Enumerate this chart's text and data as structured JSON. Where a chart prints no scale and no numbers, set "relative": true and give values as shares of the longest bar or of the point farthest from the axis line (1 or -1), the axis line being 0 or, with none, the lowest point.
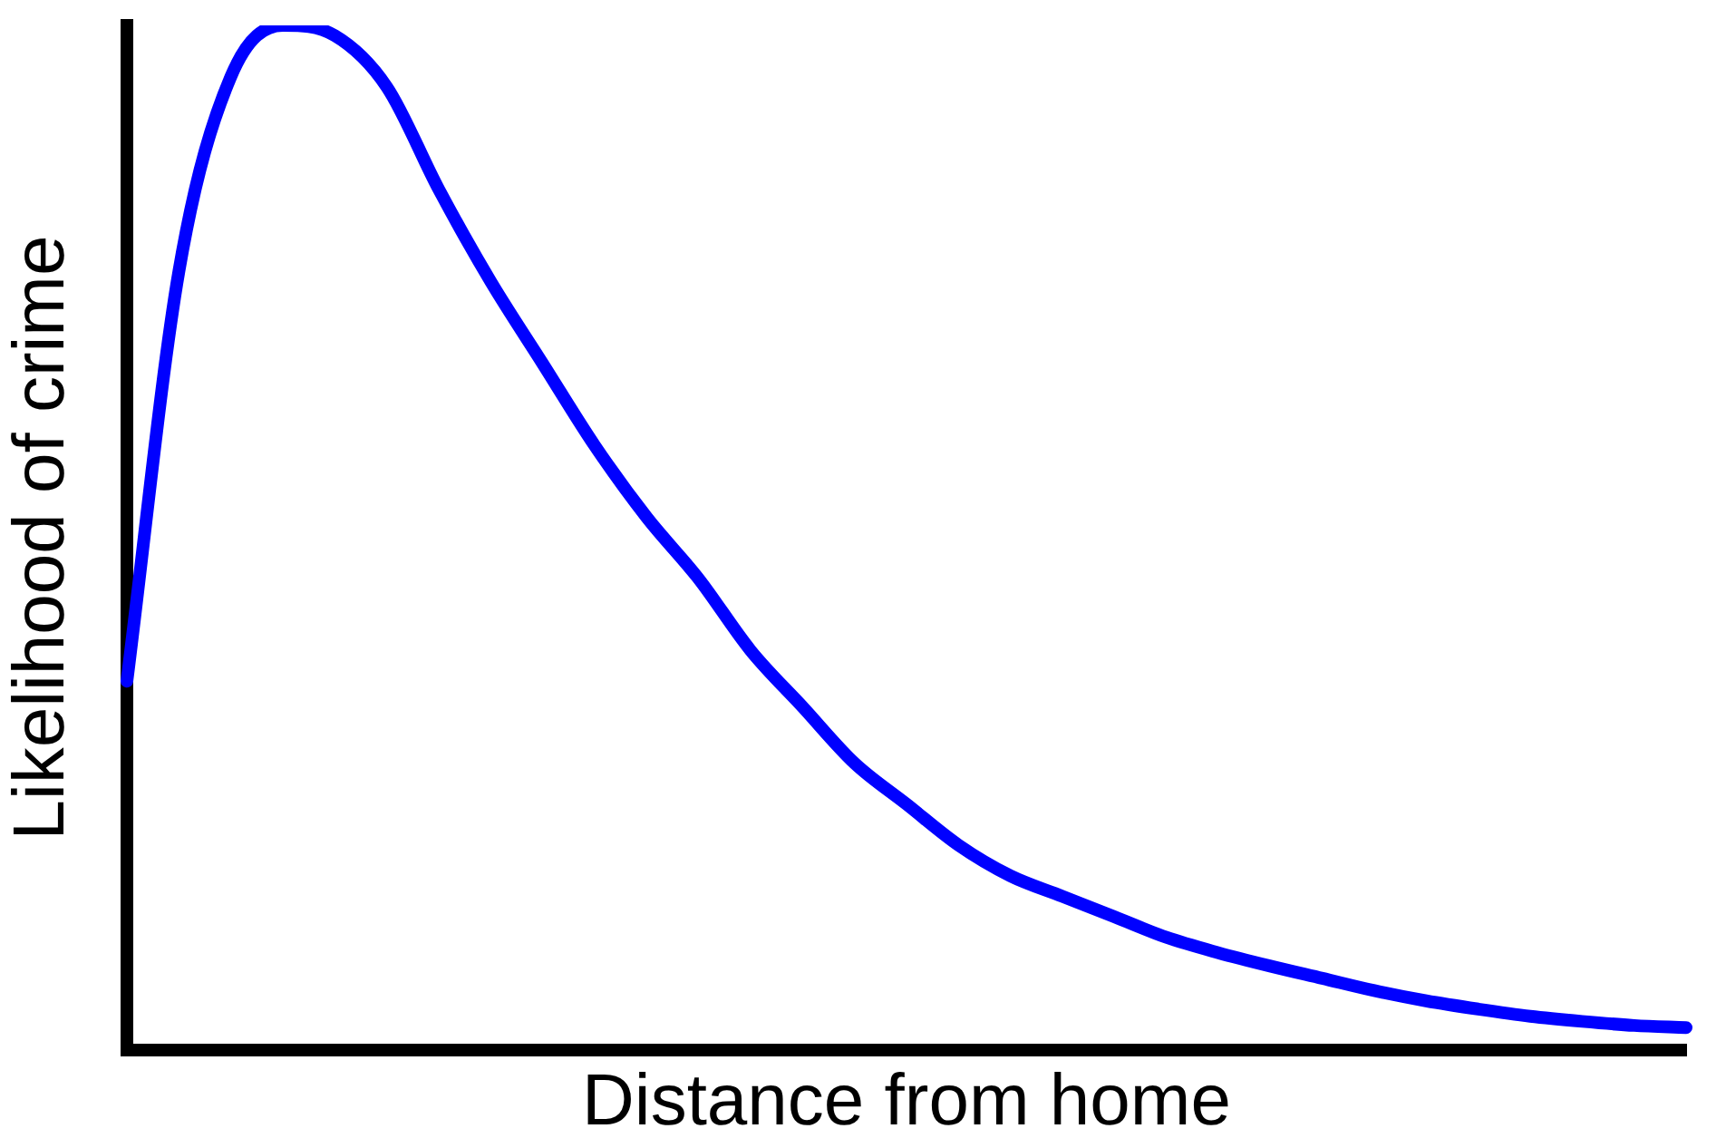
{
  "chart_data": {
    "type": "line",
    "relative": true,
    "xlabel": "Distance from home",
    "ylabel": "Likelihood of crime",
    "categories": [
      null,
      null,
      null,
      null,
      null,
      null,
      null,
      null,
      null,
      null,
      null,
      null,
      null,
      null,
      null,
      null,
      null,
      null,
      null,
      null,
      null,
      null,
      null,
      null,
      null,
      null,
      null,
      null,
      null,
      null,
      null
    ],
    "series": [
      {
        "color": "#0000ff",
        "values": [
          0.36,
          0.76,
          0.95,
          1,
          0.99,
          0.94,
          0.84,
          0.75,
          0.67,
          0.59,
          0.52,
          0.46,
          0.39,
          0.335,
          0.28,
          0.24,
          0.2,
          0.17,
          0.15,
          0.13,
          0.11,
          0.095,
          0.082,
          0.07,
          0.058,
          0.048,
          0.04,
          0.033,
          0.028,
          0.024,
          0.022
        ]
      }
    ],
    "marker": "none",
    "grid": false,
    "legend": false
  }
}
